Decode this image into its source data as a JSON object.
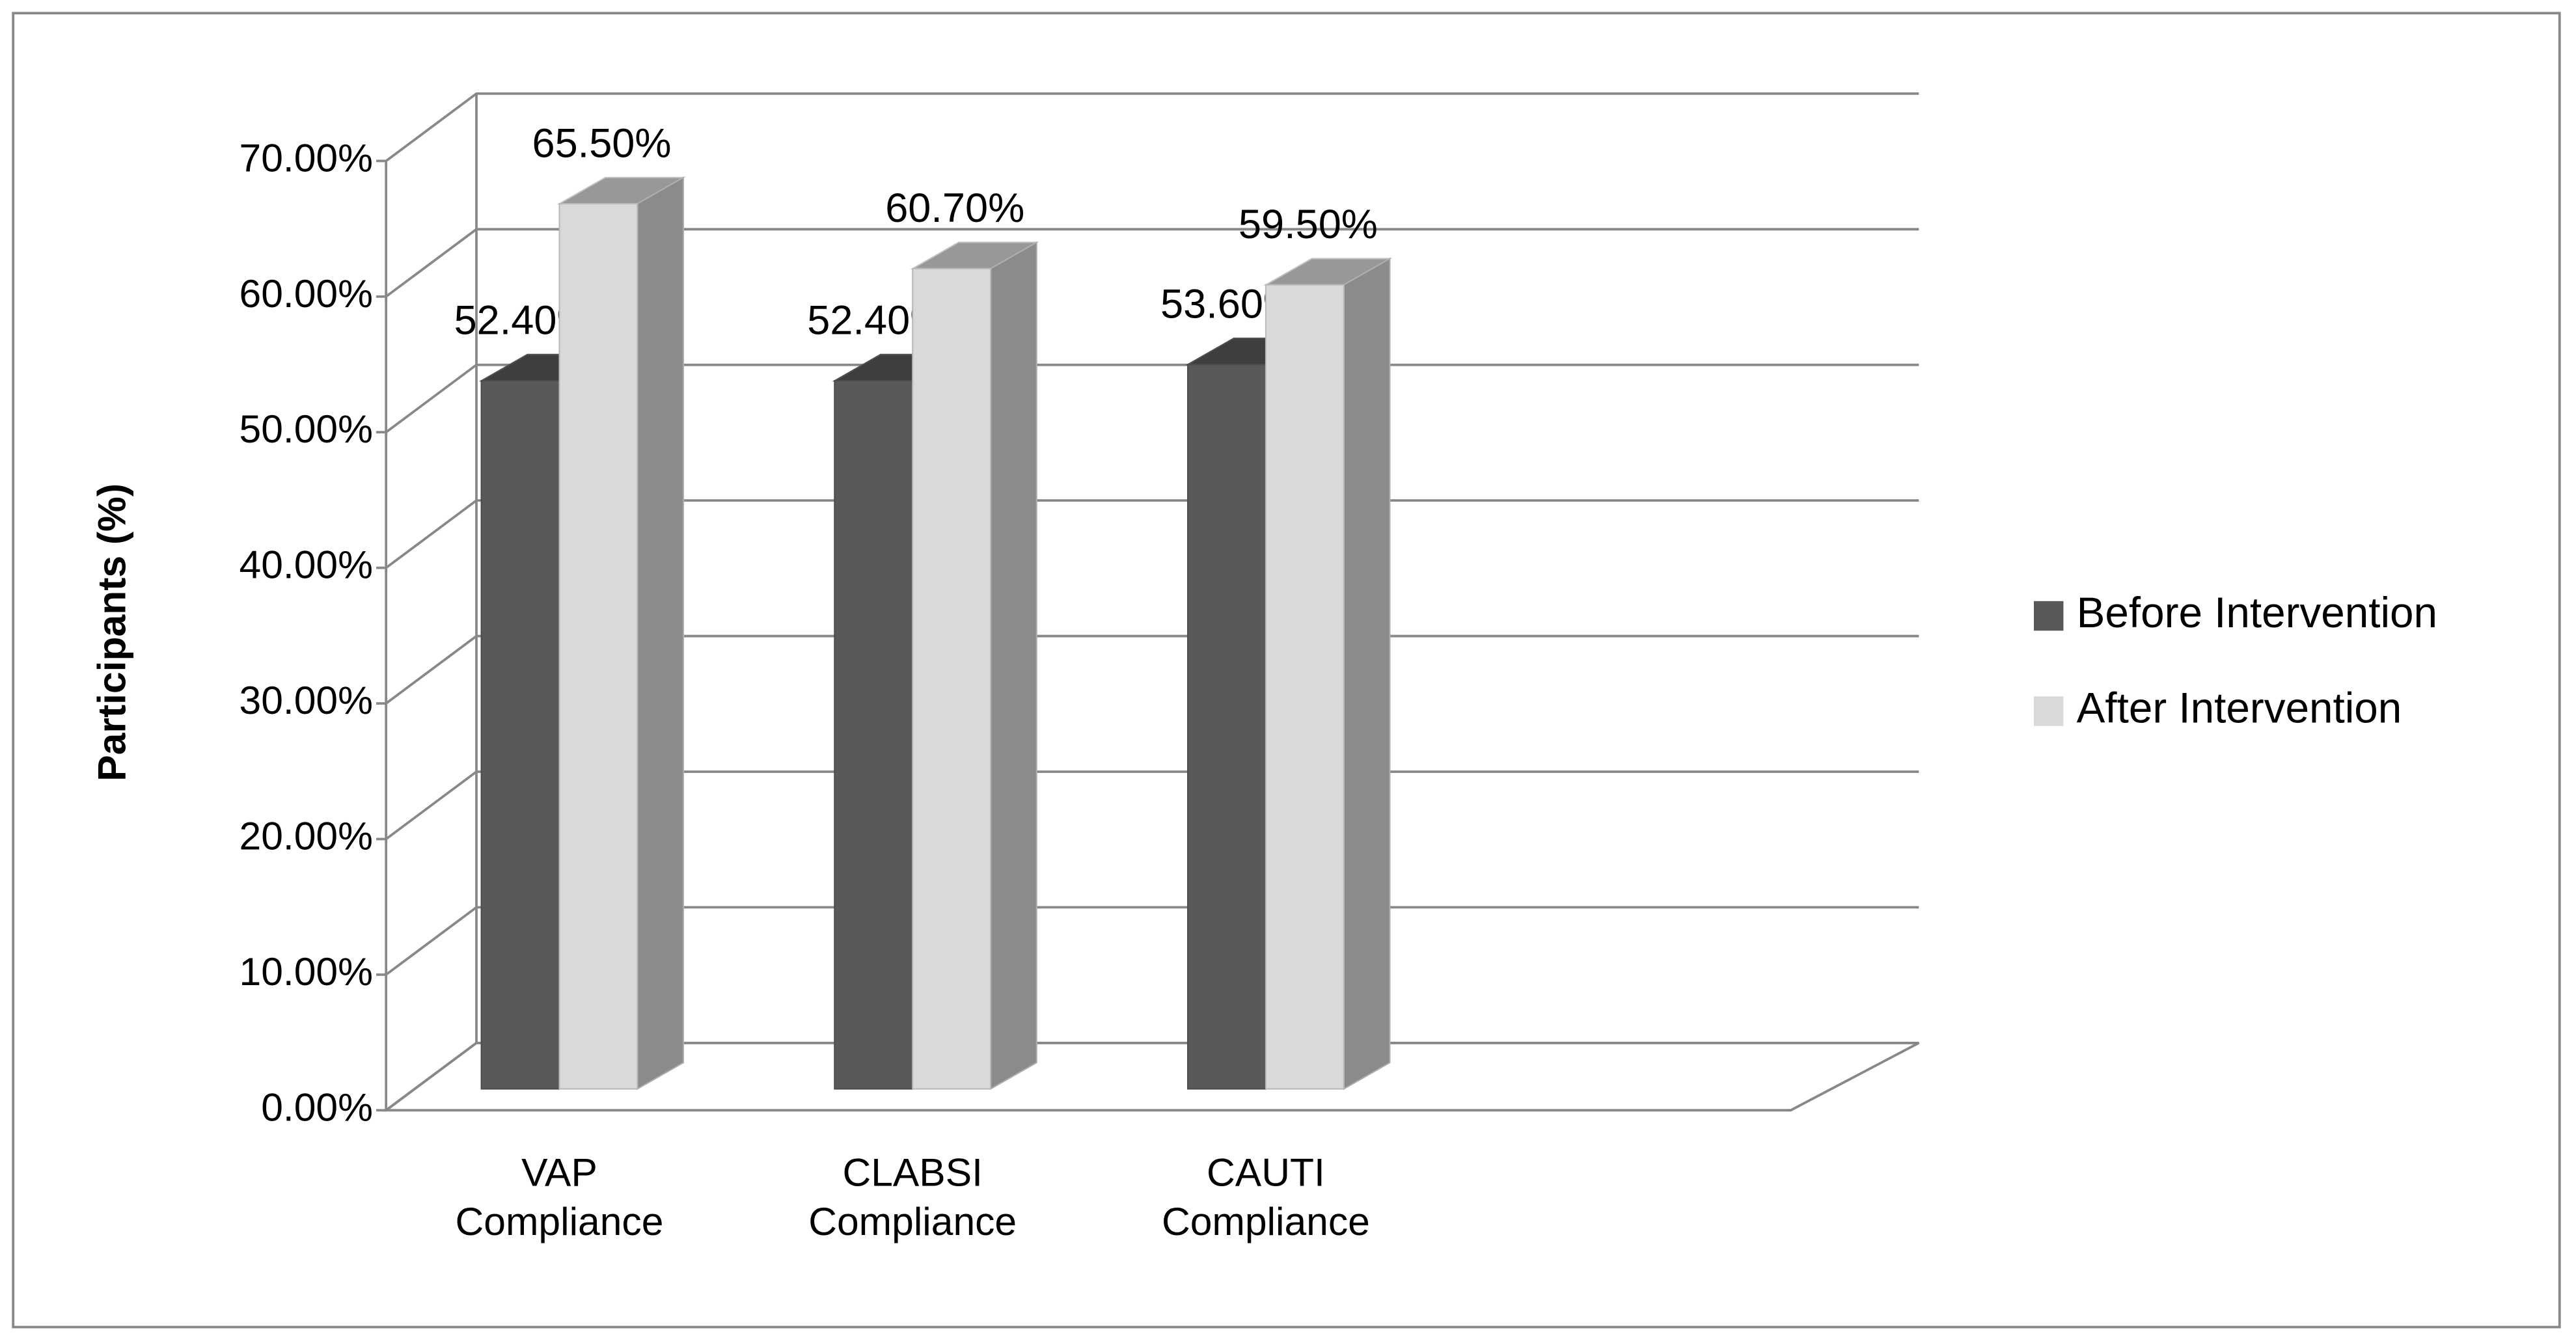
{
  "chart_data": {
    "type": "bar3d",
    "y_label": "Participants (%)",
    "categories": [
      "VAP Compliance",
      "CLABSI Compliance",
      "CAUTI Compliance"
    ],
    "series": [
      {
        "name": "Before Intervention",
        "color": "#595959",
        "values": [
          52.4,
          52.4,
          53.6
        ],
        "value_labels": [
          "52.40%",
          "52.40%",
          "53.60%"
        ]
      },
      {
        "name": "After Intervention",
        "color": "#d9d9d9",
        "values": [
          65.5,
          60.7,
          59.5
        ],
        "value_labels": [
          "65.50%",
          "60.70%",
          "59.50%"
        ]
      }
    ],
    "ylim": [
      0,
      70
    ],
    "yticks": [
      {
        "value": 0,
        "label": "0.00%"
      },
      {
        "value": 10,
        "label": "10.00%"
      },
      {
        "value": 20,
        "label": "20.00%"
      },
      {
        "value": 30,
        "label": "30.00%"
      },
      {
        "value": 40,
        "label": "40.00%"
      },
      {
        "value": 50,
        "label": "50.00%"
      },
      {
        "value": 60,
        "label": "60.00%"
      },
      {
        "value": 70,
        "label": "70.00%"
      }
    ],
    "grid": true,
    "legend": "right"
  }
}
